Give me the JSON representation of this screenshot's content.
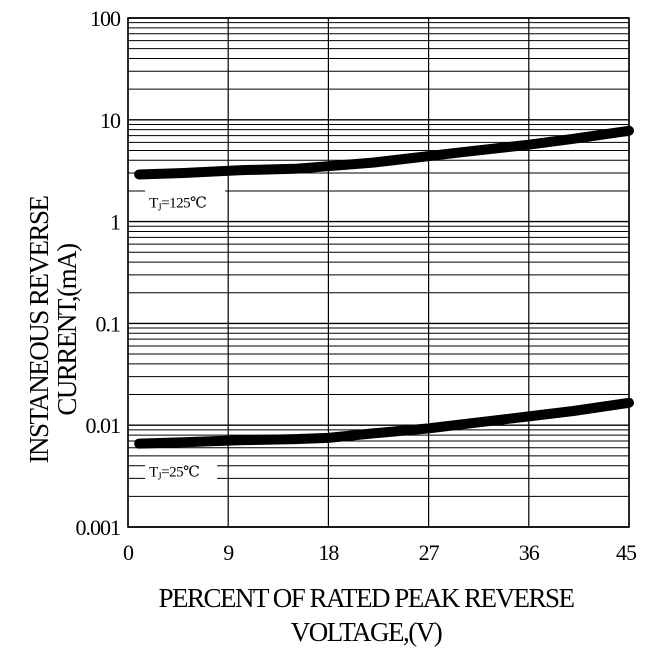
{
  "chart_data": {
    "type": "line",
    "title": "",
    "xlabel_lines": [
      "PERCENT OF RATED PEAK REVERSE",
      "VOLTAGE,(V)"
    ],
    "ylabel_lines": [
      "INSTANEOUS REVERSE",
      "CURRENT,(mA)"
    ],
    "x_ticks": [
      "0",
      "9",
      "18",
      "27",
      "36",
      "45"
    ],
    "x_tick_values": [
      0,
      9,
      18,
      27,
      36,
      45
    ],
    "y_ticks": [
      "100",
      "10",
      "1",
      "0.1",
      "0.01",
      "0.001"
    ],
    "y_tick_values": [
      100,
      10,
      1,
      0.1,
      0.01,
      0.001
    ],
    "xlim": [
      0,
      45
    ],
    "ylim": [
      0.001,
      100
    ],
    "y_scale": "log",
    "grid": true,
    "series": [
      {
        "name": "TJ=125℃",
        "label_main": "T",
        "label_sub": "J",
        "label_rest": "=125℃",
        "color": "#000000",
        "x": [
          1,
          5,
          10,
          15,
          18,
          22,
          27,
          30,
          36,
          40,
          45
        ],
        "y": [
          2.9,
          3.0,
          3.2,
          3.3,
          3.5,
          3.8,
          4.4,
          4.8,
          5.7,
          6.5,
          7.8
        ]
      },
      {
        "name": "TJ=25℃",
        "label_main": "T",
        "label_sub": "J",
        "label_rest": "=25℃",
        "color": "#000000",
        "x": [
          1,
          5,
          10,
          15,
          18,
          22,
          27,
          30,
          36,
          40,
          45
        ],
        "y": [
          0.0066,
          0.0068,
          0.0071,
          0.0073,
          0.0075,
          0.0083,
          0.0093,
          0.0102,
          0.0122,
          0.0138,
          0.0166
        ]
      }
    ]
  }
}
